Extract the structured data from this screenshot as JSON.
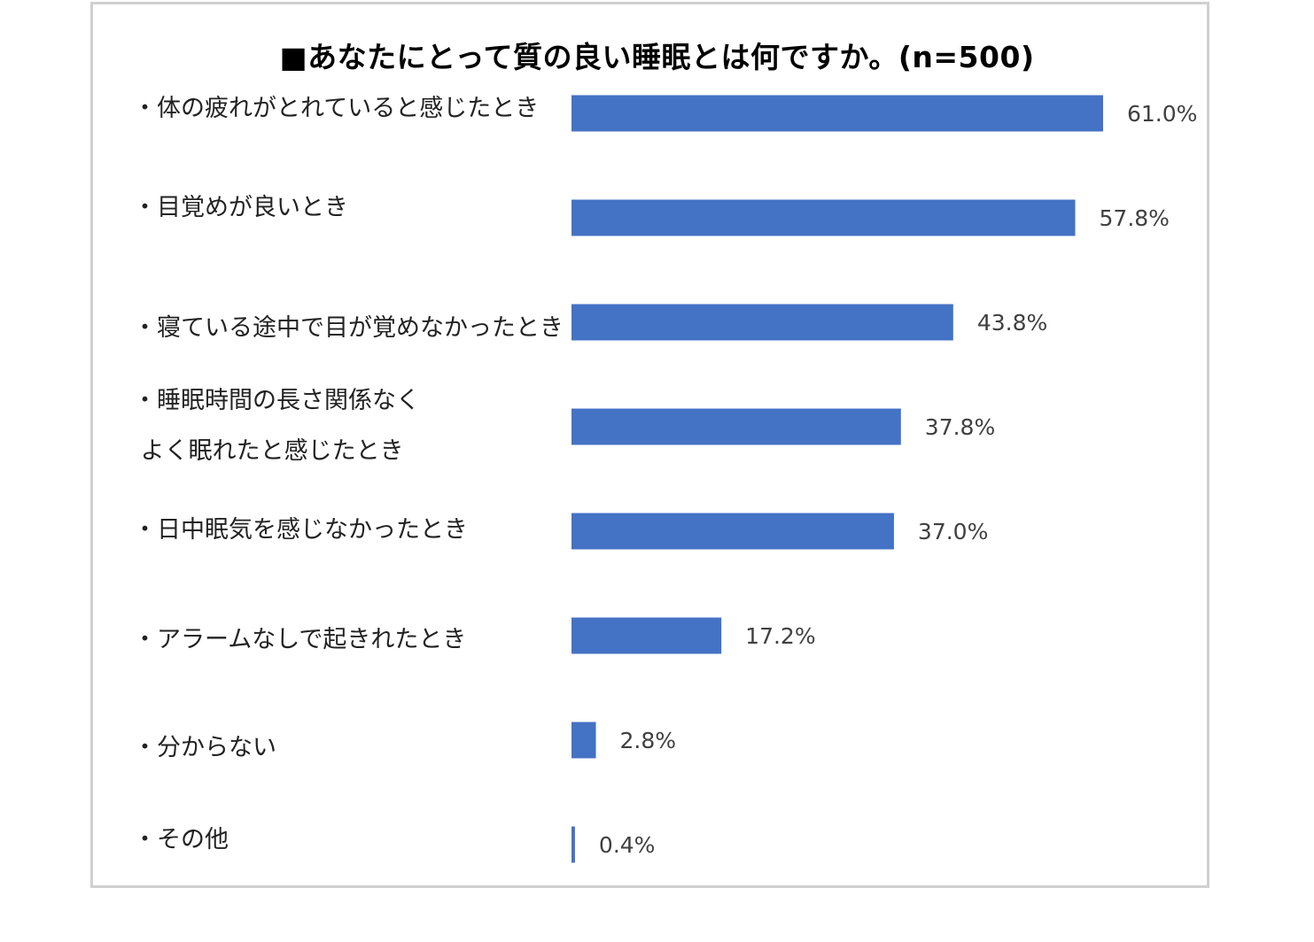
{
  "chart_data": {
    "type": "bar",
    "orientation": "horizontal",
    "title": "■あなたにとって質の良い睡眠とは何ですか。(n=500)",
    "categories": [
      "・体の疲れがとれていると感じたとき",
      "・目覚めが良いとき",
      "・寝ている途中で目が覚めなかったとき",
      "・睡眠時間の長さ関係なく\n よく眠れたと感じたとき",
      "・日中眠気を感じなかったとき",
      "・アラームなしで起きれたとき",
      "・分からない",
      "・その他"
    ],
    "values": [
      61.0,
      57.8,
      43.8,
      37.8,
      37.0,
      17.2,
      2.8,
      0.4
    ],
    "value_labels": [
      "61.0%",
      "57.8%",
      "43.8%",
      "37.8%",
      "37.0%",
      "17.2%",
      "2.8%",
      "0.4%"
    ],
    "unit": "%",
    "xlim": [
      0,
      61
    ],
    "bar_color": "#4472c4",
    "grid": false,
    "legend": "none"
  }
}
